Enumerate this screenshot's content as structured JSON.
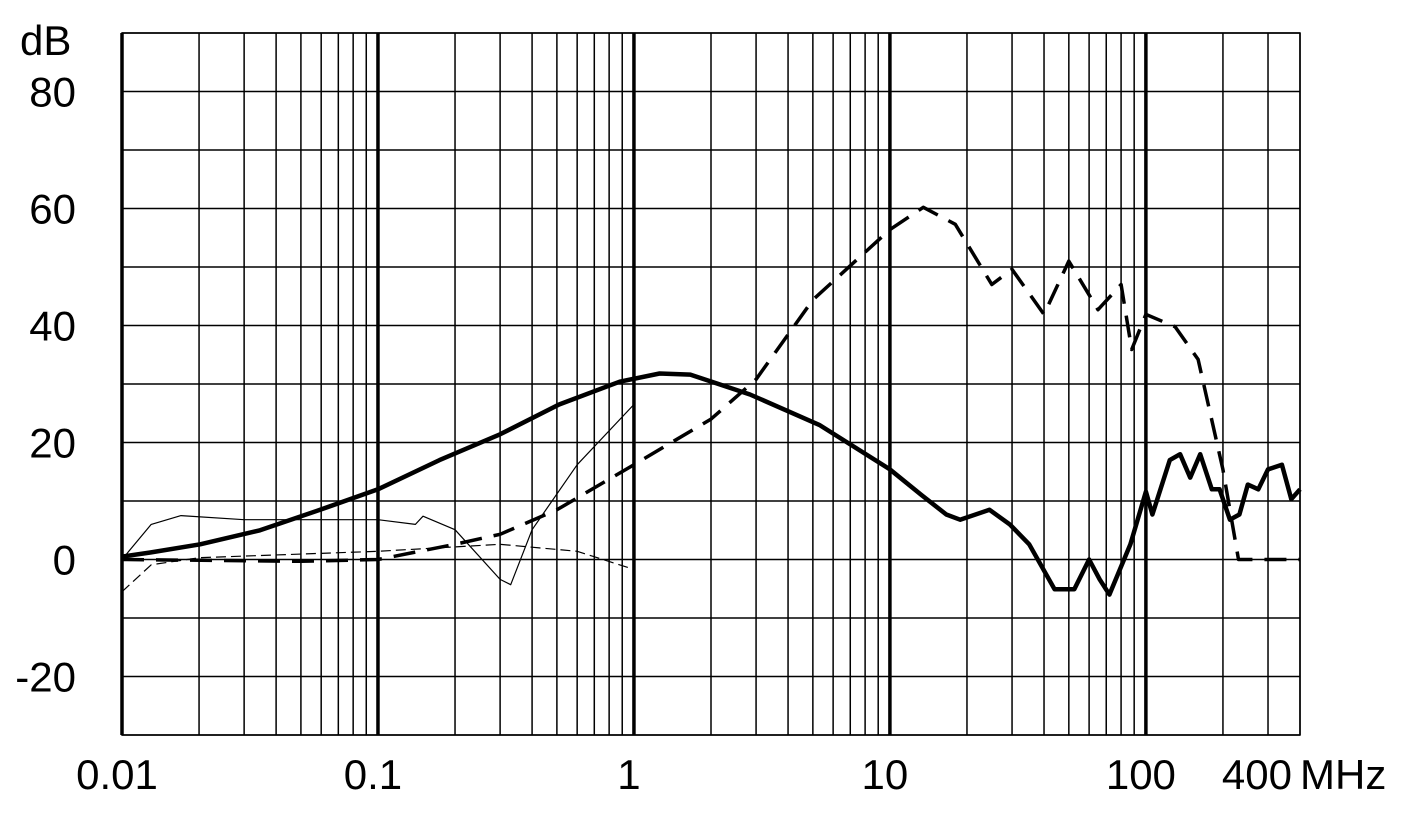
{
  "chart_data": {
    "type": "line",
    "log_x": true,
    "grid": true,
    "x_unit": "MHz",
    "y_unit": "dB",
    "xlim": [
      0.01,
      400
    ],
    "ylim": [
      -30,
      90
    ],
    "xticks": [
      0.01,
      0.1,
      1,
      10,
      100,
      400
    ],
    "xminor": [
      0.02,
      0.03,
      0.04,
      0.05,
      0.06,
      0.07,
      0.08,
      0.09,
      0.2,
      0.3,
      0.4,
      0.5,
      0.6,
      0.7,
      0.8,
      0.9,
      2,
      3,
      4,
      5,
      6,
      7,
      8,
      9,
      20,
      30,
      40,
      50,
      60,
      70,
      80,
      90,
      200,
      300
    ],
    "yticks": [
      -20,
      0,
      20,
      40,
      60,
      80
    ],
    "yminor": [
      -30,
      -10,
      10,
      30,
      50,
      70,
      90
    ],
    "series": [
      {
        "color": "#000000",
        "line_width": 4.5,
        "dash": false,
        "x": [
          0.01,
          0.0129,
          0.0202,
          0.0346,
          0.0594,
          0.1,
          0.174,
          0.3,
          0.51,
          0.88,
          1.26,
          1.66,
          2.84,
          5.3,
          10,
          13.3,
          16.6,
          18.8,
          24.5,
          29.4,
          35,
          44,
          52.5,
          60,
          66,
          72,
          87,
          100,
          106,
          124,
          136,
          149,
          163,
          181,
          194,
          213,
          232,
          250,
          275,
          300,
          340,
          370,
          400
        ],
        "y": [
          0.5,
          1.2,
          2.6,
          5,
          8.5,
          12,
          17,
          21.4,
          26.5,
          30.4,
          31.8,
          31.6,
          28.2,
          23,
          15.4,
          11,
          7.7,
          6.8,
          8.5,
          6,
          2.6,
          -5.1,
          -5.1,
          0,
          -3.4,
          -6,
          2.6,
          11.6,
          7.7,
          17,
          18,
          14,
          18,
          12,
          12,
          6.8,
          7.7,
          12.8,
          12,
          15.4,
          16.2,
          10.3,
          12
        ]
      },
      {
        "color": "#000000",
        "line_width": 3.5,
        "dash": true,
        "x": [
          0.01,
          0.05,
          0.1,
          0.2,
          0.3,
          0.5,
          1,
          2,
          3,
          5,
          10,
          13.5,
          18,
          25,
          30,
          40,
          50,
          65,
          80,
          88,
          100,
          130,
          160,
          200,
          230,
          400
        ],
        "y": [
          0,
          -0.3,
          0,
          2.6,
          4.3,
          8.5,
          16.2,
          24,
          30.8,
          44.4,
          56.4,
          60.2,
          57.3,
          47,
          49.6,
          41.9,
          51,
          42.7,
          47,
          35.9,
          41.9,
          39.8,
          34.2,
          15.4,
          0,
          0
        ]
      },
      {
        "color": "#000000",
        "line_width": 1.2,
        "dash": false,
        "x": [
          0.01,
          0.013,
          0.017,
          0.03,
          0.1,
          0.14,
          0.15,
          0.2,
          0.3,
          0.33,
          0.4,
          0.6,
          1
        ],
        "y": [
          0,
          6,
          7.5,
          6.8,
          6.8,
          6,
          7.4,
          5.1,
          -3.4,
          -4.3,
          5.1,
          16.2,
          26.5
        ]
      },
      {
        "color": "#000000",
        "line_width": 1.2,
        "dash": true,
        "x": [
          0.01,
          0.013,
          0.02,
          0.1,
          0.3,
          0.6,
          1
        ],
        "y": [
          -5.5,
          -0.9,
          0.3,
          1.4,
          2.6,
          1.4,
          -1.7
        ]
      }
    ]
  }
}
